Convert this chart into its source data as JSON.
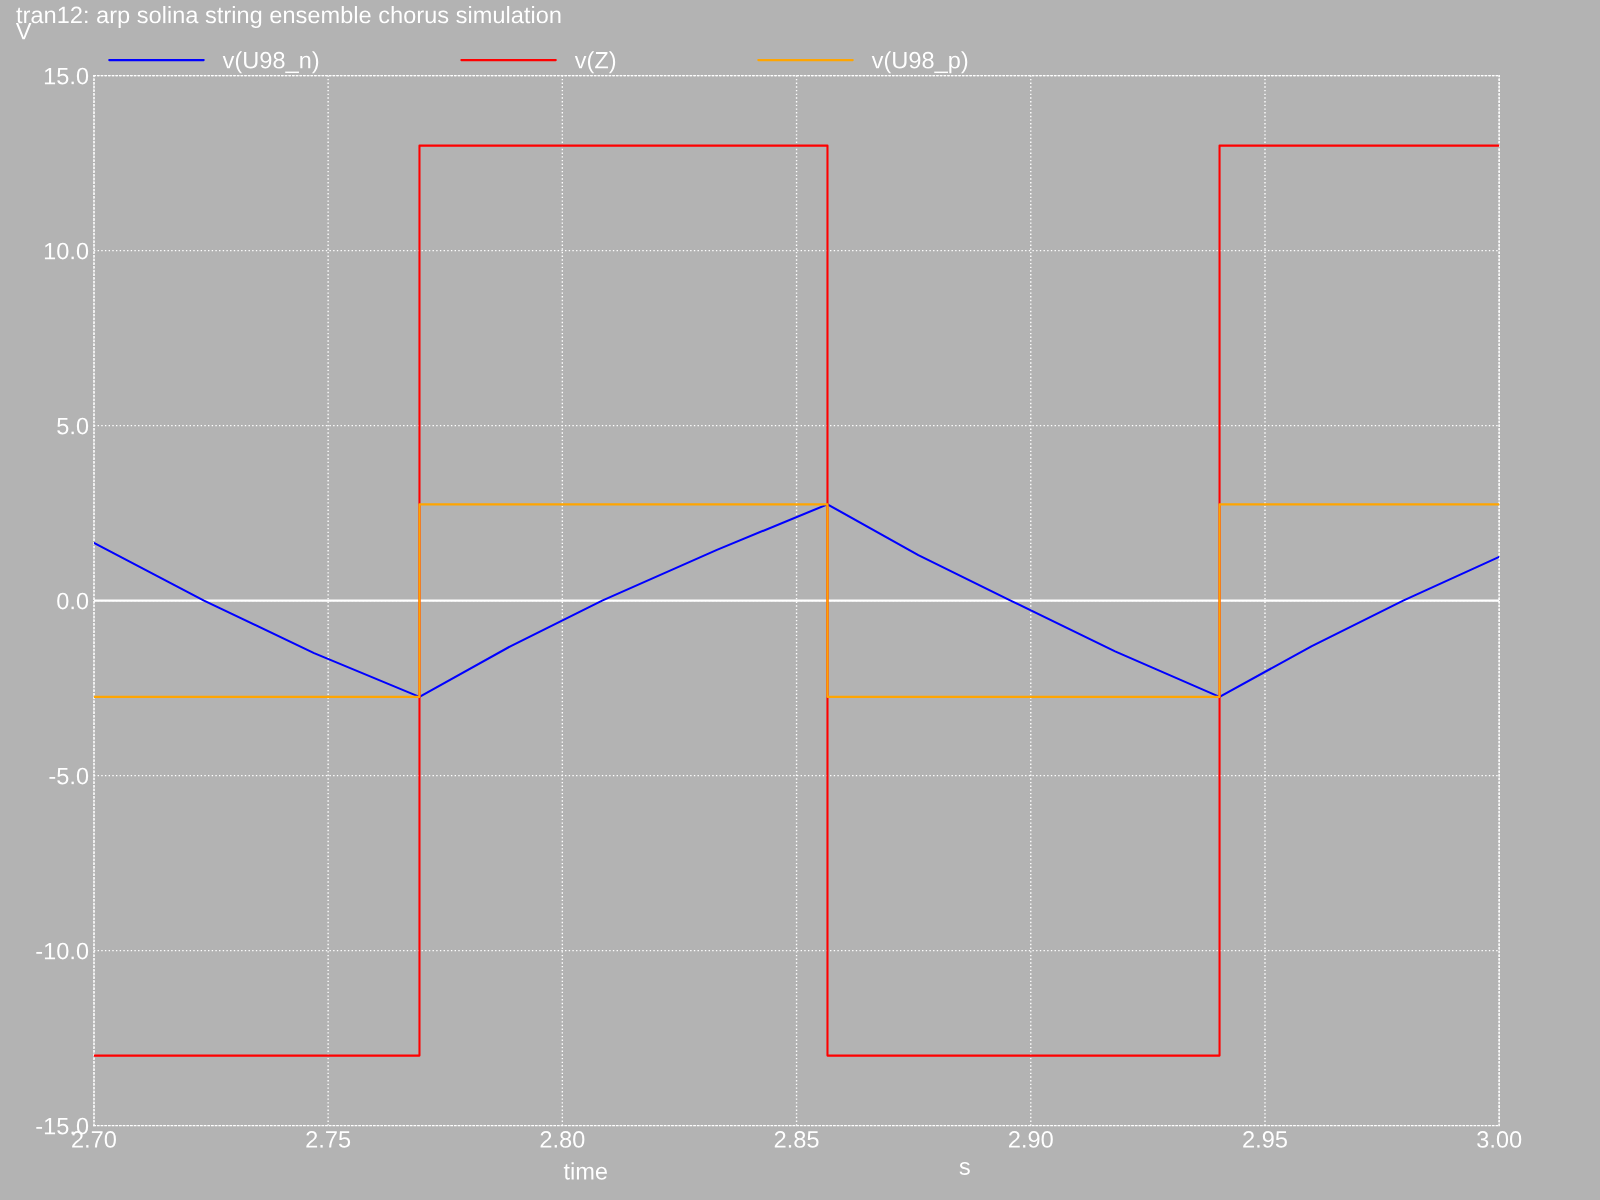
{
  "chart_data": {
    "type": "line",
    "title": "tran12: arp solina string ensemble chorus simulation",
    "xlabel": "time",
    "ylabel": "V",
    "annotations": [
      "s"
    ],
    "series": [
      {
        "name": "v(U98_n)",
        "color": "#0000ff",
        "x": [
          2.7,
          2.7235,
          2.747,
          2.7695,
          2.789,
          2.8085,
          2.833,
          2.8566,
          2.876,
          2.8957,
          2.918,
          2.9403,
          2.96,
          2.9795,
          3.0
        ],
        "values": [
          1.65,
          0.0,
          -1.5,
          -2.75,
          -1.3,
          0.0,
          1.45,
          2.75,
          1.3,
          0.0,
          -1.45,
          -2.75,
          -1.3,
          0.0,
          1.25
        ]
      },
      {
        "name": "v(Z)",
        "color": "#ff0000",
        "x": [
          2.7,
          2.7695,
          2.7695,
          2.8566,
          2.8566,
          2.9403,
          2.9403,
          3.0
        ],
        "values": [
          -13,
          -13,
          13,
          13,
          -13,
          -13,
          13,
          13
        ]
      },
      {
        "name": "v(U98_p)",
        "color": "#ffa500",
        "x": [
          2.7,
          2.7695,
          2.7695,
          2.8566,
          2.8566,
          2.9403,
          2.9403,
          3.0
        ],
        "values": [
          -2.75,
          -2.75,
          2.75,
          2.75,
          -2.75,
          -2.75,
          2.75,
          2.75
        ]
      }
    ],
    "xlim": [
      2.7,
      3.0
    ],
    "ylim": [
      -15,
      15
    ],
    "xticks": [
      {
        "value": 2.7,
        "label": "2.70"
      },
      {
        "value": 2.75,
        "label": "2.75"
      },
      {
        "value": 2.8,
        "label": "2.80"
      },
      {
        "value": 2.85,
        "label": "2.85"
      },
      {
        "value": 2.9,
        "label": "2.90"
      },
      {
        "value": 2.95,
        "label": "2.95"
      },
      {
        "value": 3.0,
        "label": "3.00"
      }
    ],
    "yticks": [
      {
        "value": -15,
        "label": "-15.0"
      },
      {
        "value": -10,
        "label": "-10.0"
      },
      {
        "value": -5,
        "label": "-5.0"
      },
      {
        "value": 0,
        "label": "0.0"
      },
      {
        "value": 5,
        "label": "5.0"
      },
      {
        "value": 10,
        "label": "10.0"
      },
      {
        "value": 15,
        "label": "15.0"
      }
    ],
    "ref_lines": [
      {
        "axis": "y",
        "value": 0,
        "color": "#ffffff",
        "line_style": "solid"
      }
    ],
    "grid": true,
    "legend": "top",
    "line_style": "solid",
    "marker": "none"
  }
}
